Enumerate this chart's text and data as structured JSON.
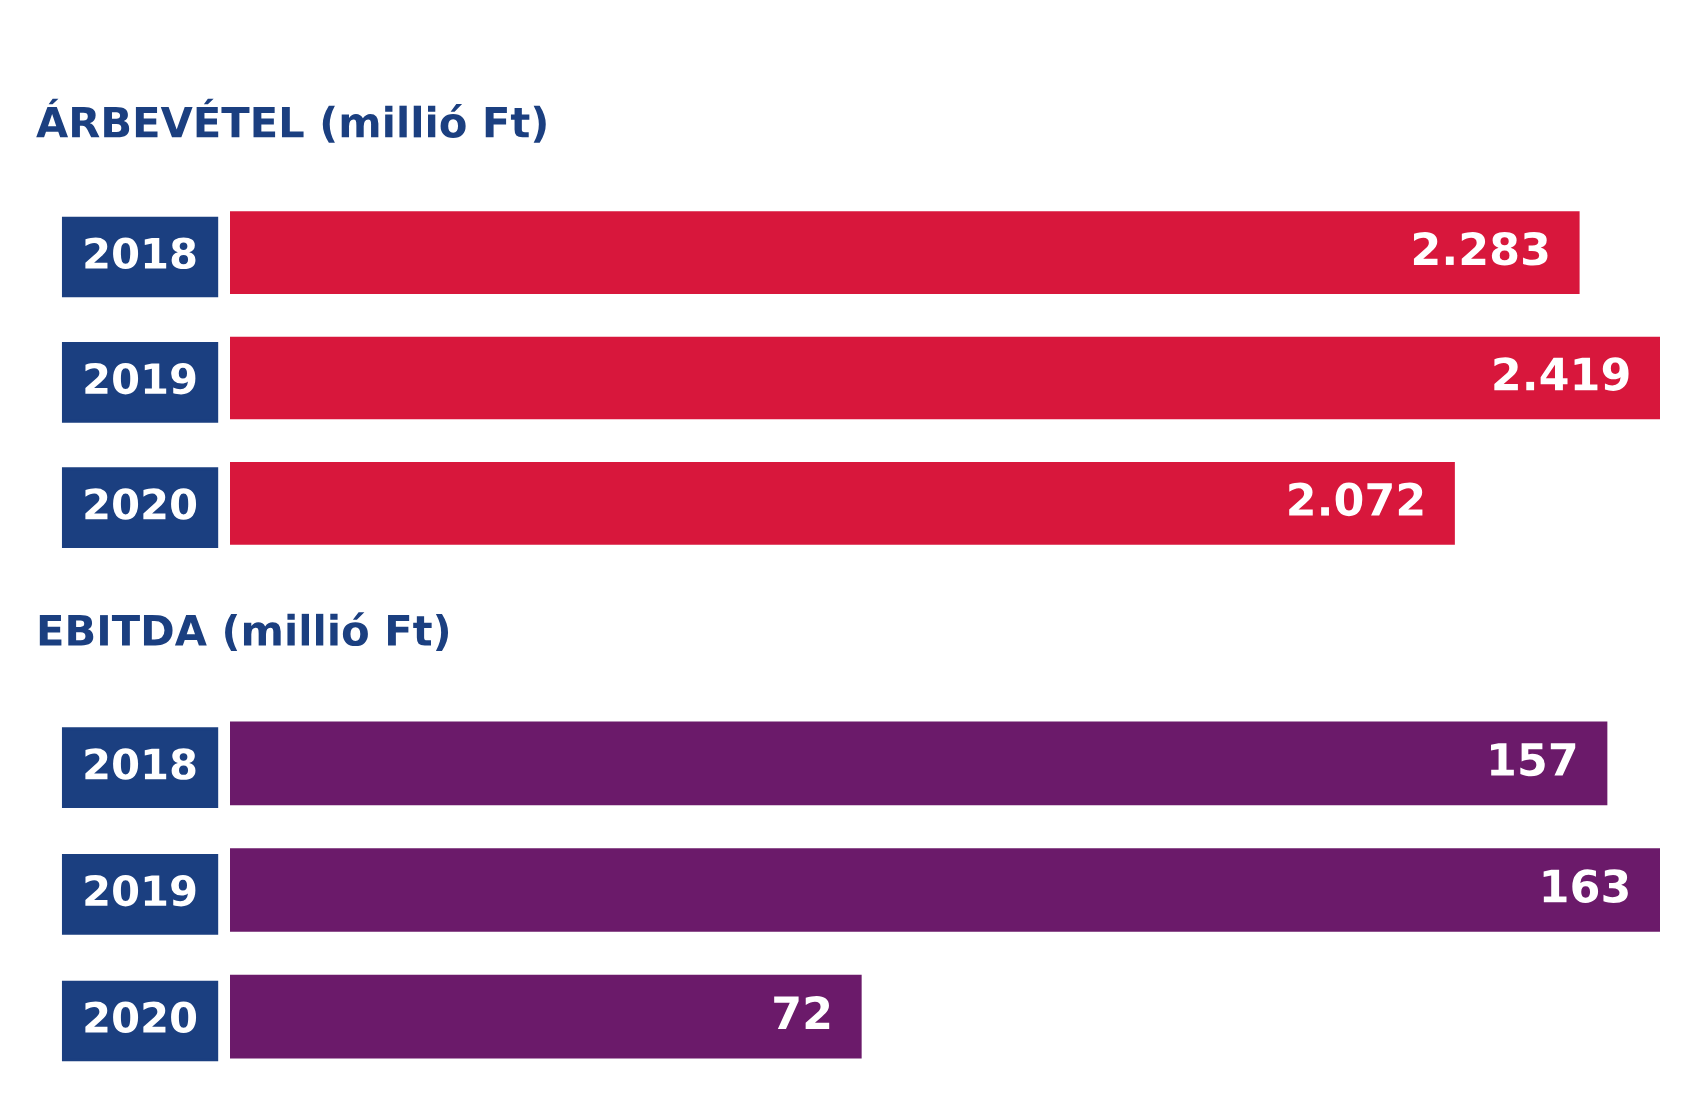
{
  "chart_data": [
    {
      "type": "bar",
      "orientation": "horizontal",
      "title": "ÁRBEVÉTEL (millió Ft)",
      "categories": [
        "2018",
        "2019",
        "2020"
      ],
      "values": [
        2283,
        2419,
        2072
      ],
      "value_labels": [
        "2.283",
        "2.419",
        "2.072"
      ],
      "color": "#d8173c",
      "tick_labels": "y",
      "grid": false,
      "legend": false
    },
    {
      "type": "bar",
      "orientation": "horizontal",
      "title": "EBITDA (millió Ft)",
      "categories": [
        "2018",
        "2019",
        "2020"
      ],
      "values": [
        157,
        163,
        72
      ],
      "value_labels": [
        "157",
        "163",
        "72"
      ],
      "color": "#6b1a6a",
      "tick_labels": "y",
      "grid": false,
      "legend": false
    }
  ]
}
